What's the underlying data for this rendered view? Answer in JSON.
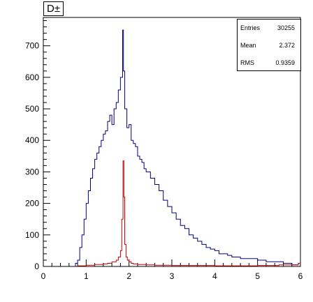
{
  "chart_data": {
    "type": "histogram",
    "title": "D±",
    "xlim": [
      0,
      6
    ],
    "ylim": [
      0,
      790
    ],
    "x_ticks": [
      0,
      1,
      2,
      3,
      4,
      5,
      6
    ],
    "y_ticks": [
      0,
      100,
      200,
      300,
      400,
      500,
      600,
      700
    ],
    "grid": false,
    "stats": [
      {
        "label": "Entries",
        "value": "30255"
      },
      {
        "label": "Mean",
        "value": "2.372"
      },
      {
        "label": "RMS",
        "value": "0.9359"
      }
    ],
    "series": [
      {
        "color": "#000080",
        "x": [
          0.75,
          0.8,
          0.85,
          0.9,
          0.95,
          1.0,
          1.05,
          1.1,
          1.15,
          1.2,
          1.25,
          1.3,
          1.35,
          1.4,
          1.45,
          1.5,
          1.55,
          1.6,
          1.65,
          1.7,
          1.75,
          1.8,
          1.85,
          1.87,
          1.9,
          1.95,
          2.0,
          2.05,
          2.1,
          2.15,
          2.2,
          2.25,
          2.3,
          2.35,
          2.4,
          2.5,
          2.6,
          2.7,
          2.8,
          2.9,
          3.0,
          3.1,
          3.2,
          3.3,
          3.4,
          3.5,
          3.6,
          3.7,
          3.8,
          3.9,
          4.0,
          4.1,
          4.2,
          4.3,
          4.4,
          4.5,
          4.6,
          4.8,
          5.0,
          5.2,
          5.4,
          5.6,
          5.8,
          5.95
        ],
        "y": [
          10,
          20,
          60,
          100,
          150,
          200,
          240,
          280,
          310,
          340,
          360,
          380,
          400,
          420,
          430,
          460,
          480,
          450,
          500,
          520,
          560,
          600,
          750,
          620,
          500,
          440,
          450,
          400,
          390,
          380,
          350,
          340,
          330,
          310,
          300,
          280,
          260,
          240,
          210,
          190,
          170,
          150,
          130,
          120,
          100,
          90,
          80,
          70,
          60,
          55,
          50,
          40,
          40,
          35,
          30,
          30,
          25,
          25,
          20,
          15,
          15,
          10,
          5,
          10
        ]
      },
      {
        "color": "#cc0000",
        "x": [
          0.8,
          1.0,
          1.2,
          1.4,
          1.5,
          1.6,
          1.7,
          1.75,
          1.8,
          1.83,
          1.86,
          1.88,
          1.9,
          1.93,
          1.96,
          2.0,
          2.05,
          2.1,
          2.2,
          2.4,
          2.6,
          3.0,
          3.5,
          4.0,
          4.5,
          5.0,
          5.5,
          5.95
        ],
        "y": [
          2,
          4,
          6,
          8,
          10,
          14,
          20,
          30,
          50,
          150,
          335,
          220,
          70,
          30,
          20,
          15,
          10,
          8,
          6,
          5,
          4,
          3,
          3,
          2,
          2,
          3,
          5,
          10
        ]
      }
    ]
  }
}
